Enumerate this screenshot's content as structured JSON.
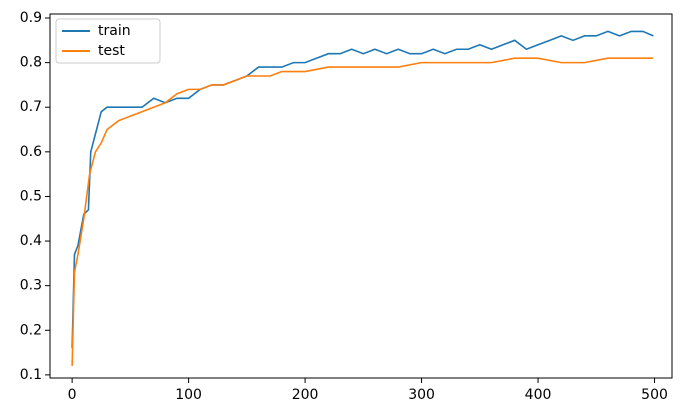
{
  "chart_data": {
    "type": "line",
    "xlim": [
      -19,
      515
    ],
    "ylim": [
      0.093,
      0.909
    ],
    "xticks": [
      0,
      100,
      200,
      300,
      400,
      500
    ],
    "yticks": [
      0.1,
      0.2,
      0.3,
      0.4,
      0.5,
      0.6,
      0.7,
      0.8,
      0.9
    ],
    "legend": "upper left",
    "series": [
      {
        "name": "train",
        "color": "#1f77b4",
        "x": [
          0,
          2,
          5,
          10,
          14,
          16,
          20,
          25,
          30,
          40,
          50,
          60,
          70,
          80,
          90,
          100,
          110,
          120,
          130,
          140,
          150,
          160,
          170,
          180,
          190,
          200,
          210,
          220,
          230,
          240,
          250,
          260,
          270,
          280,
          290,
          300,
          310,
          320,
          330,
          340,
          350,
          360,
          370,
          380,
          390,
          400,
          410,
          420,
          430,
          440,
          450,
          460,
          470,
          480,
          490,
          499
        ],
        "values": [
          0.16,
          0.37,
          0.39,
          0.46,
          0.47,
          0.6,
          0.64,
          0.69,
          0.7,
          0.7,
          0.7,
          0.7,
          0.72,
          0.71,
          0.72,
          0.72,
          0.74,
          0.75,
          0.75,
          0.76,
          0.77,
          0.79,
          0.79,
          0.79,
          0.8,
          0.8,
          0.81,
          0.82,
          0.82,
          0.83,
          0.82,
          0.83,
          0.82,
          0.83,
          0.82,
          0.82,
          0.83,
          0.82,
          0.83,
          0.83,
          0.84,
          0.83,
          0.84,
          0.85,
          0.83,
          0.84,
          0.85,
          0.86,
          0.85,
          0.86,
          0.86,
          0.87,
          0.86,
          0.87,
          0.87,
          0.86
        ]
      },
      {
        "name": "test",
        "color": "#ff7f0e",
        "x": [
          0,
          2,
          5,
          10,
          15,
          20,
          25,
          30,
          40,
          50,
          60,
          70,
          80,
          90,
          100,
          110,
          120,
          130,
          140,
          150,
          160,
          170,
          180,
          190,
          200,
          220,
          240,
          260,
          280,
          300,
          320,
          340,
          360,
          380,
          400,
          420,
          440,
          460,
          480,
          499
        ],
        "values": [
          0.12,
          0.33,
          0.37,
          0.45,
          0.55,
          0.6,
          0.62,
          0.65,
          0.67,
          0.68,
          0.69,
          0.7,
          0.71,
          0.73,
          0.74,
          0.74,
          0.75,
          0.75,
          0.76,
          0.77,
          0.77,
          0.77,
          0.78,
          0.78,
          0.78,
          0.79,
          0.79,
          0.79,
          0.79,
          0.8,
          0.8,
          0.8,
          0.8,
          0.81,
          0.81,
          0.8,
          0.8,
          0.81,
          0.81,
          0.81
        ]
      }
    ]
  }
}
